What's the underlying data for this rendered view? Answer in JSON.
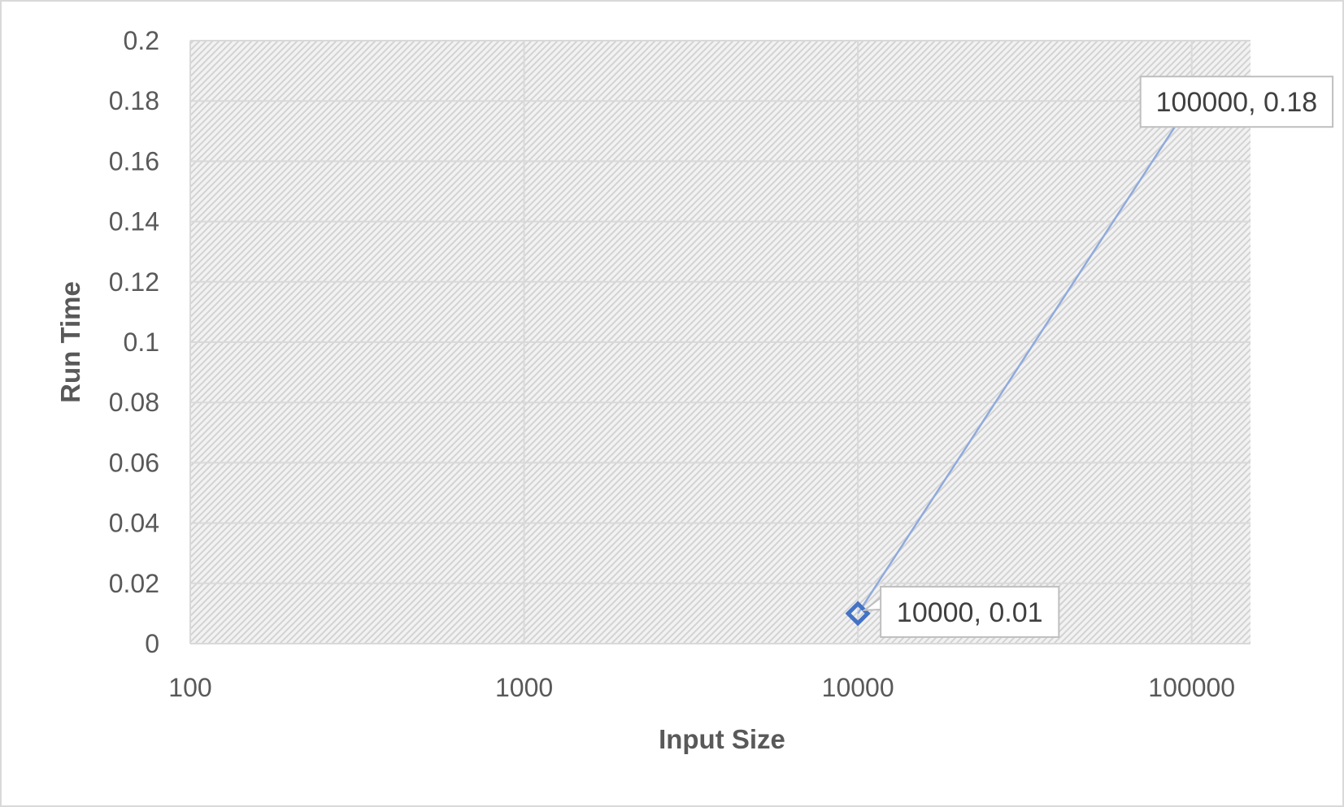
{
  "chart_data": {
    "type": "scatter",
    "title": "",
    "xlabel": "Input Size",
    "ylabel": "Run Time",
    "x_scale": "log",
    "xlim": [
      100,
      150000
    ],
    "ylim": [
      0,
      0.2
    ],
    "x_ticks": [
      100,
      1000,
      10000,
      100000
    ],
    "x_tick_labels": [
      "100",
      "1000",
      "10000",
      "100000"
    ],
    "y_ticks": [
      0,
      0.02,
      0.04,
      0.06,
      0.08,
      0.1,
      0.12,
      0.14,
      0.16,
      0.18,
      0.2
    ],
    "y_tick_labels": [
      "0",
      "0.02",
      "0.04",
      "0.06",
      "0.08",
      "0.1",
      "0.12",
      "0.14",
      "0.16",
      "0.18",
      "0.2"
    ],
    "grid": true,
    "legend": "none",
    "plot_background": "diagonal-hatch",
    "series": [
      {
        "color": "#4472C4",
        "line_color": "#8FAADC",
        "marker": "diamond-outline",
        "x": [
          10000,
          100000
        ],
        "y": [
          0.01,
          0.18
        ],
        "data_labels": [
          "10000, 0.01",
          "100000, 0.18"
        ]
      }
    ]
  }
}
